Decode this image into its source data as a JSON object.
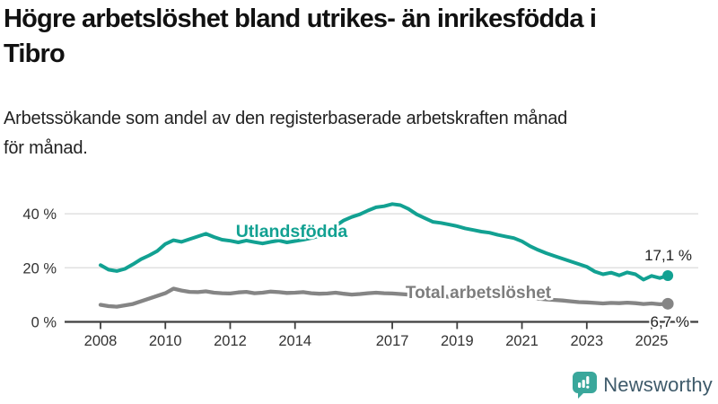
{
  "header": {
    "title_line1": "Högre arbetslöshet bland utrikes- än inrikesfödda i",
    "title_line2": "Tibro",
    "subtitle_line1": "Arbetssökande som andel av den registerbaserade arbetskraften månad",
    "subtitle_line2": "för månad."
  },
  "colors": {
    "series_foreign": "#12a192",
    "series_total": "#858585",
    "series_total_label": "#7d7d7d",
    "axis": "#3f3f3f",
    "grid": "#e1e1e1",
    "tick_text": "#333333",
    "end_label_text": "#222222",
    "logo_icon": "#3aa79b",
    "logo_text": "#3e5a6a"
  },
  "chart_data": {
    "type": "line",
    "title": "Högre arbetslöshet bland utrikes- än inrikesfödda i Tibro",
    "subtitle": "Arbetssökande som andel av den registerbaserade arbetskraften månad för månad.",
    "x_start_year": 2008,
    "points_per_year": 4,
    "x_ticks": [
      2008,
      2010,
      2012,
      2014,
      2017,
      2019,
      2021,
      2023,
      2025
    ],
    "y_ticks": [
      0,
      20,
      40
    ],
    "y_tick_labels": [
      "0 %",
      "20 %",
      "40 %"
    ],
    "ylim": [
      0,
      48
    ],
    "grid": true,
    "legend_position": "inline-labels",
    "series": [
      {
        "name": "Utlandsfödda",
        "end_label": "17,1 %",
        "values": [
          21.0,
          19.3,
          18.8,
          19.6,
          21.3,
          23.2,
          24.6,
          26.2,
          28.8,
          30.2,
          29.6,
          30.6,
          31.6,
          32.6,
          31.4,
          30.4,
          30.0,
          29.4,
          30.1,
          29.5,
          29.0,
          29.6,
          30.1,
          29.4,
          29.9,
          30.4,
          31.0,
          31.8,
          33.5,
          35.5,
          37.5,
          38.8,
          39.8,
          41.2,
          42.4,
          42.8,
          43.6,
          43.2,
          41.8,
          39.8,
          38.4,
          37.0,
          36.6,
          36.0,
          35.4,
          34.6,
          34.0,
          33.4,
          33.0,
          32.2,
          31.6,
          31.0,
          29.8,
          28.0,
          26.6,
          25.4,
          24.4,
          23.4,
          22.4,
          21.4,
          20.4,
          18.6,
          17.6,
          18.2,
          17.2,
          18.3,
          17.6,
          15.6,
          17.0,
          16.2,
          17.1
        ]
      },
      {
        "name": "Total arbetslöshet",
        "end_label": "6,7 %",
        "values": [
          6.3,
          5.8,
          5.6,
          6.1,
          6.6,
          7.6,
          8.6,
          9.6,
          10.6,
          12.3,
          11.6,
          11.1,
          11.0,
          11.3,
          10.8,
          10.6,
          10.5,
          10.9,
          11.1,
          10.6,
          10.8,
          11.2,
          11.0,
          10.7,
          10.8,
          11.0,
          10.6,
          10.4,
          10.5,
          10.8,
          10.4,
          10.1,
          10.3,
          10.6,
          10.8,
          10.6,
          10.5,
          10.3,
          10.1,
          9.8,
          9.6,
          9.4,
          9.5,
          9.3,
          9.1,
          8.9,
          9.0,
          9.2,
          9.4,
          9.7,
          9.5,
          9.2,
          9.0,
          8.8,
          8.6,
          8.3,
          8.1,
          7.9,
          7.6,
          7.3,
          7.2,
          7.0,
          6.8,
          7.0,
          6.9,
          7.1,
          6.9,
          6.6,
          6.8,
          6.5,
          6.7
        ]
      }
    ]
  },
  "logo": {
    "text": "Newsworthy"
  }
}
